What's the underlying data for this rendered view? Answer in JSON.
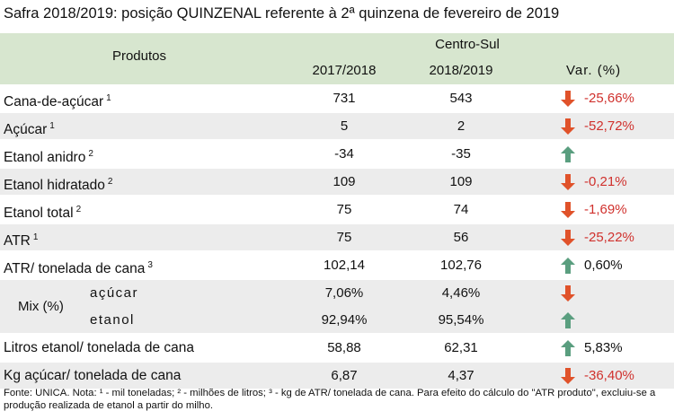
{
  "title": "Safra 2018/2019: posição QUINZENAL referente à 2ª quinzena de fevereiro de 2019",
  "header": {
    "products": "Produtos",
    "region": "Centro-Sul",
    "years": [
      "2017/2018",
      "2018/2019"
    ],
    "variation": "Var. (%)"
  },
  "rows": [
    {
      "label": "Cana-de-açúcar",
      "note": "1",
      "values": [
        "731",
        "543"
      ],
      "trend": "down",
      "variation": "-25,66%"
    },
    {
      "label": "Açúcar",
      "note": "1",
      "values": [
        "5",
        "2"
      ],
      "trend": "down",
      "variation": "-52,72%"
    },
    {
      "label": "Etanol anidro",
      "note": "2",
      "values": [
        "-34",
        "-35"
      ],
      "trend": "up"
    },
    {
      "label": "Etanol hidratado",
      "note": "2",
      "values": [
        "109",
        "109"
      ],
      "trend": "down",
      "variation": "-0,21%"
    },
    {
      "label": "Etanol total",
      "note": "2",
      "values": [
        "75",
        "74"
      ],
      "trend": "down",
      "variation": "-1,69%"
    },
    {
      "label": "ATR",
      "note": "1",
      "values": [
        "75",
        "56"
      ],
      "trend": "down",
      "variation": "-25,22%"
    },
    {
      "label": "ATR/ tonelada de cana",
      "note": "3",
      "values": [
        "102,14",
        "102,76"
      ],
      "trend": "up",
      "variation": "0,60%"
    },
    {
      "label": "Mix (%)",
      "parts": [
        {
          "label": "açúcar",
          "values": [
            "7,06%",
            "4,46%"
          ],
          "trend": "down"
        },
        {
          "label": "etanol",
          "values": [
            "92,94%",
            "95,54%"
          ],
          "trend": "up"
        }
      ]
    },
    {
      "label": "Litros etanol/ tonelada de cana",
      "values": [
        "58,88",
        "62,31"
      ],
      "trend": "up",
      "variation": "5,83%"
    },
    {
      "label": "Kg açúcar/ tonelada de cana",
      "values": [
        "6,87",
        "4,37"
      ],
      "trend": "down",
      "variation": "-36,40%"
    }
  ],
  "footnote": "Fonte: UNICA. Nota: ¹ - mil toneladas; ² - milhões de litros; ³ - kg de ATR/ tonelada de cana. Para efeito do cálculo do \"ATR produto\", excluiu-se a produção realizada de etanol a partir do milho."
}
